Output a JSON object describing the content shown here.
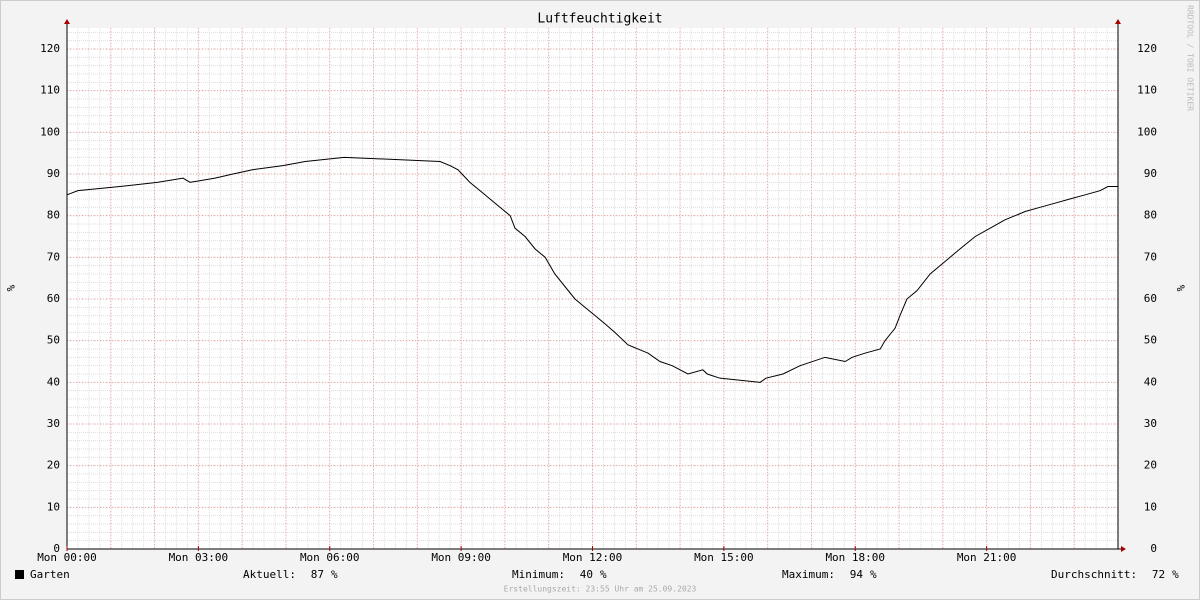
{
  "chart_data": {
    "type": "line",
    "title": "Luftfeuchtigkeit",
    "y_label": "%",
    "watermark": "RRDTOOL / TOBI OETIKER",
    "x": [
      0,
      0.25,
      1.21,
      2.06,
      2.65,
      2.81,
      3.38,
      3.79,
      4.22,
      4.93,
      5.44,
      6.33,
      8.52,
      8.75,
      8.93,
      9.02,
      9.2,
      9.43,
      9.66,
      9.89,
      10.12,
      10.23,
      10.46,
      10.69,
      10.92,
      11.14,
      11.37,
      11.6,
      11.83,
      12.06,
      12.29,
      12.51,
      12.81,
      13.27,
      13.54,
      13.82,
      14.18,
      14.52,
      14.62,
      14.91,
      15.83,
      15.96,
      16.35,
      16.74,
      17.31,
      17.77,
      17.93,
      18.22,
      18.57,
      18.68,
      18.91,
      19.02,
      19.18,
      19.41,
      19.71,
      20.05,
      20.39,
      20.74,
      21.08,
      21.42,
      21.88,
      22.22,
      22.56,
      22.9,
      23.25,
      23.59,
      23.77,
      24
    ],
    "series": [
      {
        "name": "Garten",
        "color": "#000000",
        "values": [
          85,
          86,
          87,
          88,
          89,
          88,
          89,
          90,
          91,
          92,
          93,
          94,
          93,
          92,
          91,
          90,
          88,
          86,
          84,
          82,
          80,
          77,
          75,
          72,
          70,
          66,
          63,
          60,
          58,
          56,
          54,
          52,
          49,
          47,
          45,
          44,
          42,
          43,
          42,
          41,
          40,
          41,
          42,
          44,
          46,
          45,
          46,
          47,
          48,
          50,
          53,
          56,
          60,
          62,
          66,
          69,
          72,
          75,
          77,
          79,
          81,
          82,
          83,
          84,
          85,
          86,
          87,
          87
        ]
      }
    ],
    "xlim": [
      0,
      24
    ],
    "xticks": [
      {
        "value": 0,
        "label": "Mon 00:00"
      },
      {
        "value": 3,
        "label": "Mon 03:00"
      },
      {
        "value": 6,
        "label": "Mon 06:00"
      },
      {
        "value": 9,
        "label": "Mon 09:00"
      },
      {
        "value": 12,
        "label": "Mon 12:00"
      },
      {
        "value": 15,
        "label": "Mon 15:00"
      },
      {
        "value": 18,
        "label": "Mon 18:00"
      },
      {
        "value": 21,
        "label": "Mon 21:00"
      }
    ],
    "ylim": [
      0,
      125
    ],
    "yticks": [
      0,
      10,
      20,
      30,
      40,
      50,
      60,
      70,
      80,
      90,
      100,
      110,
      120
    ],
    "grid": true,
    "stats": [
      {
        "label": "Aktuell:",
        "value": 87,
        "unit": "%"
      },
      {
        "label": "Minimum:",
        "value": 40,
        "unit": "%"
      },
      {
        "label": "Maximum:",
        "value": 94,
        "unit": "%"
      },
      {
        "label": "Durchschnitt:",
        "value": 72,
        "unit": "%"
      }
    ],
    "footer": "Erstellungszeit: 23:55 Uhr am 25.09.2023"
  }
}
